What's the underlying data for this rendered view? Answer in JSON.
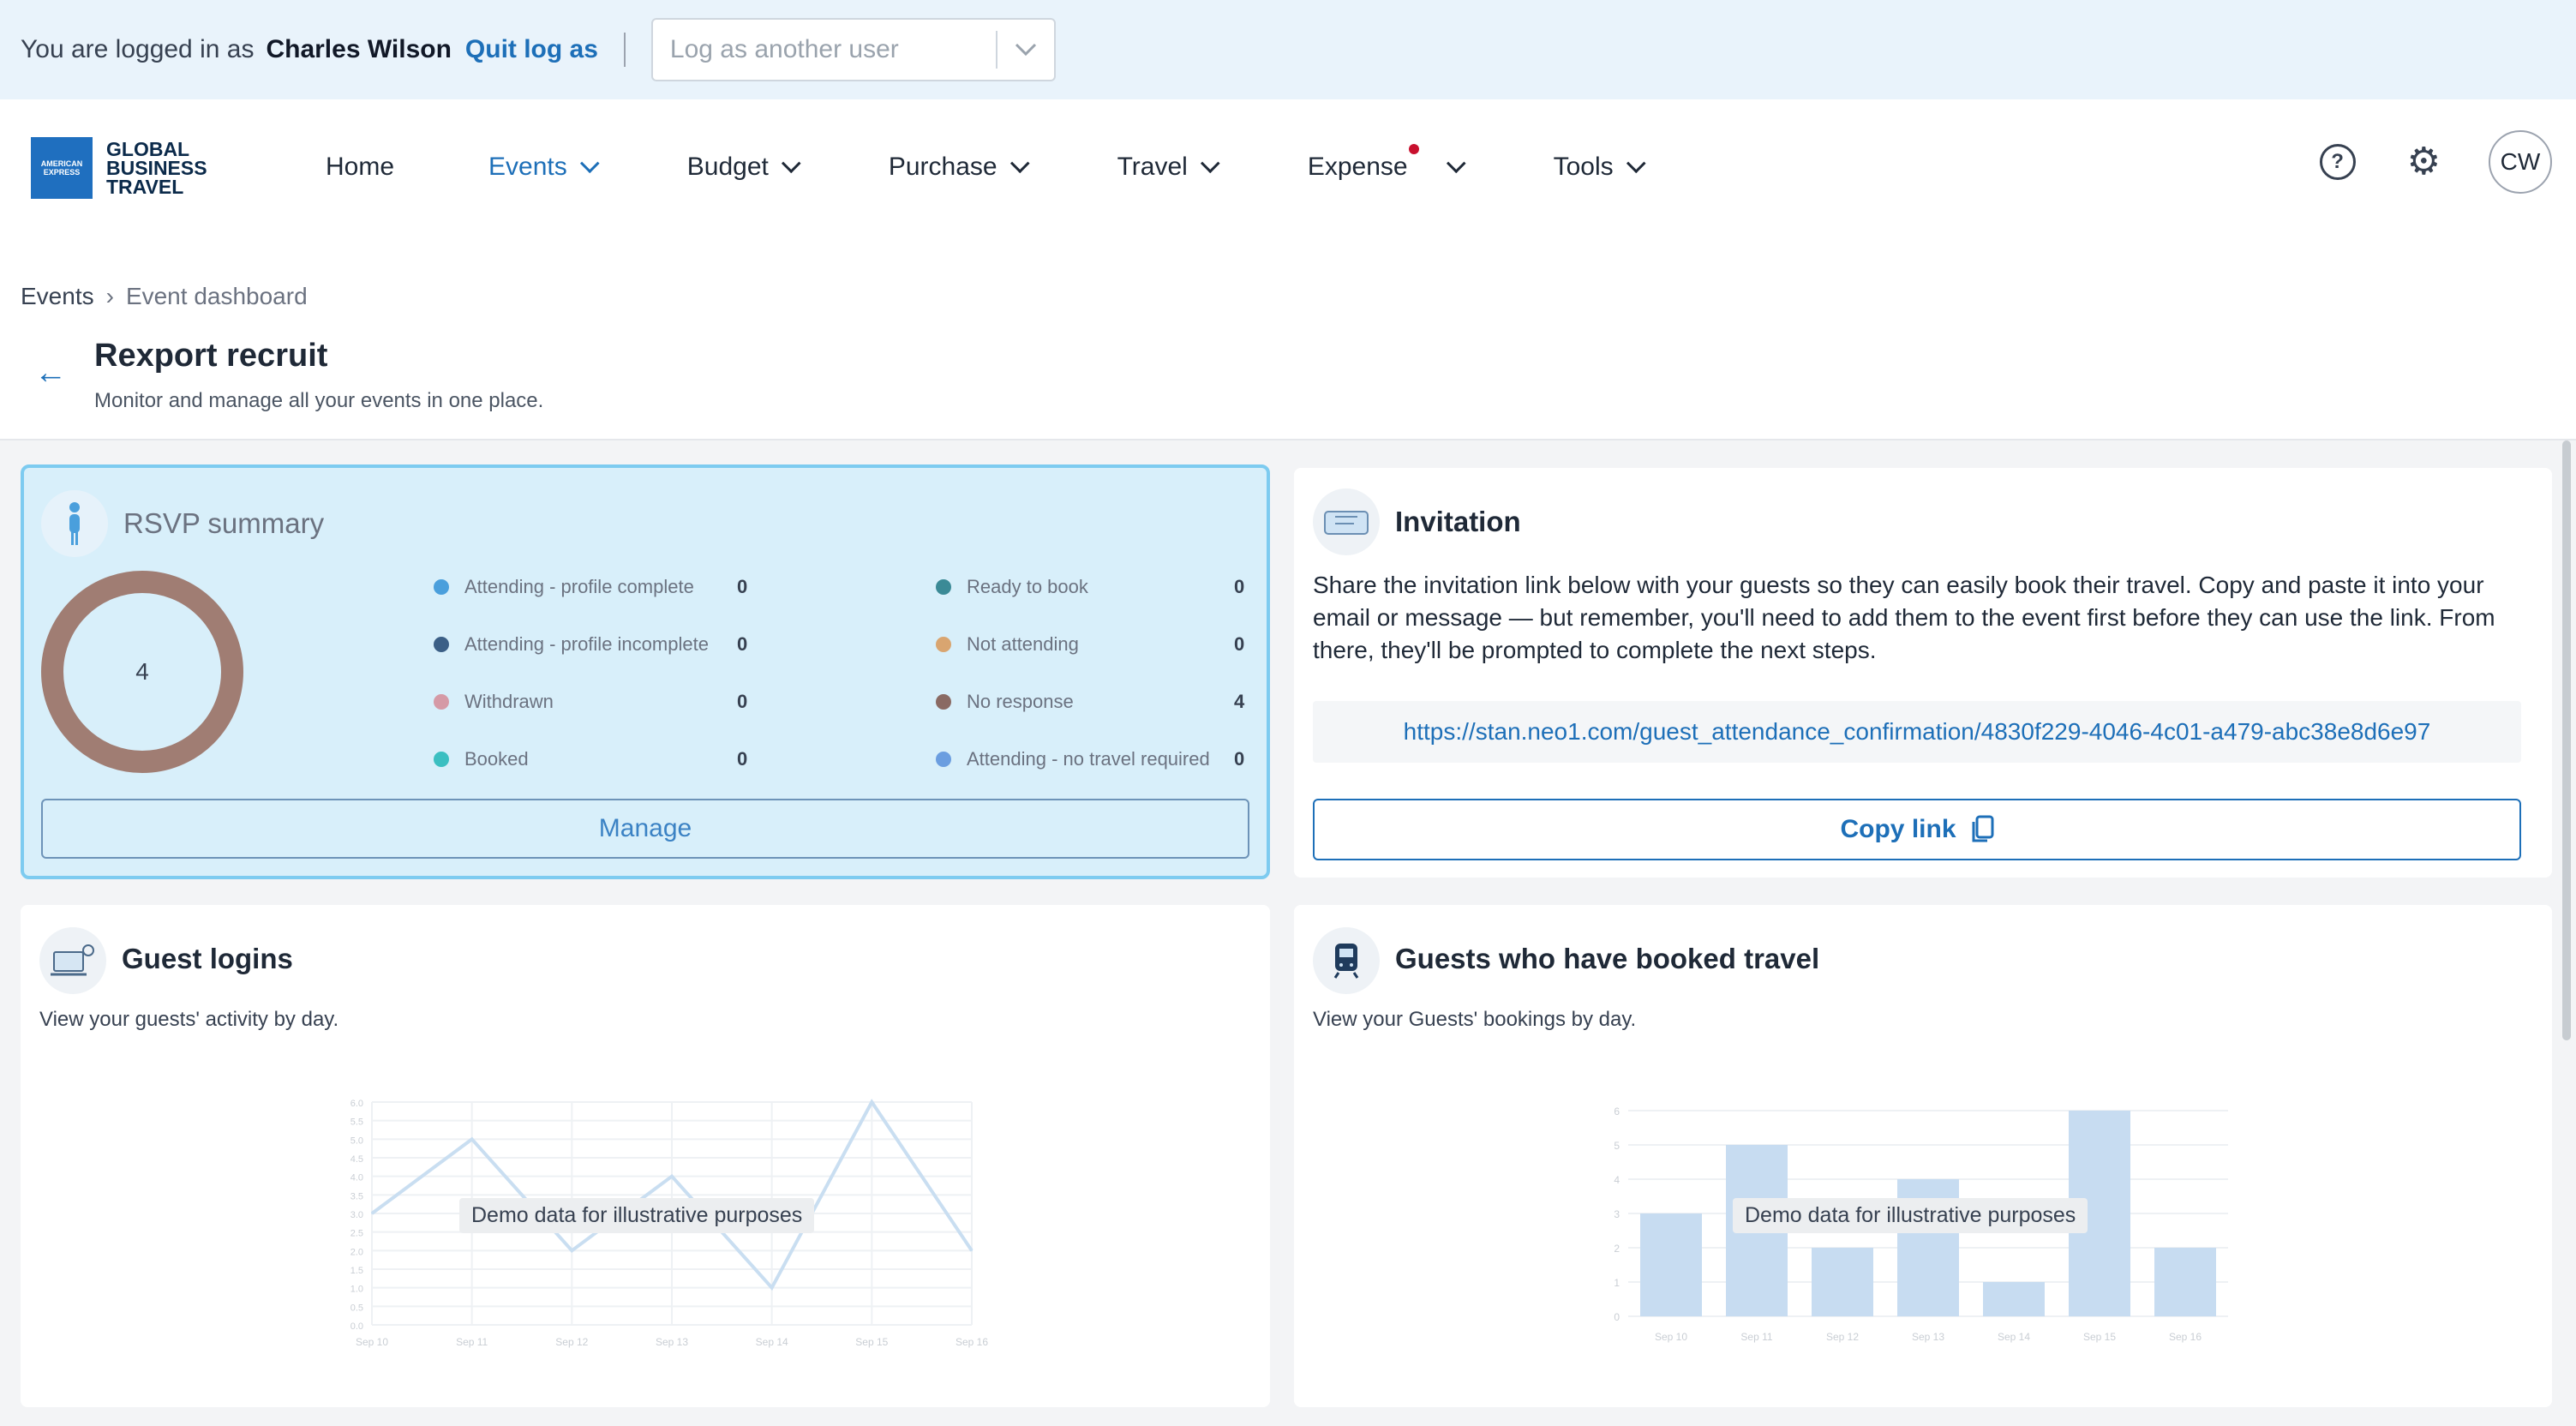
{
  "impersonation": {
    "prefix": "You are logged in as",
    "user": "Charles Wilson",
    "quit_label": "Quit log as",
    "select_placeholder": "Log as another user"
  },
  "nav": {
    "brand_line1": "GLOBAL",
    "brand_line2": "BUSINESS",
    "brand_line3": "TRAVEL",
    "brand_box": "AMERICAN EXPRESS",
    "items": [
      {
        "label": "Home"
      },
      {
        "label": "Events"
      },
      {
        "label": "Budget"
      },
      {
        "label": "Purchase"
      },
      {
        "label": "Travel"
      },
      {
        "label": "Expense"
      },
      {
        "label": "Tools"
      }
    ],
    "avatar": "CW"
  },
  "breadcrumb": {
    "root": "Events",
    "current": "Event dashboard"
  },
  "page": {
    "title": "Rexport recruit",
    "subtitle": "Monitor and manage all your events in one place."
  },
  "rsvp": {
    "title": "RSVP summary",
    "total": "4",
    "manage_label": "Manage",
    "legend": [
      {
        "label": "Attending - profile complete",
        "value": "0",
        "color": "#4a9fdc"
      },
      {
        "label": "Attending - profile incomplete",
        "value": "0",
        "color": "#3b5f86"
      },
      {
        "label": "Withdrawn",
        "value": "0",
        "color": "#d59aa6"
      },
      {
        "label": "Booked",
        "value": "0",
        "color": "#3bbfc1"
      },
      {
        "label": "Ready to book",
        "value": "0",
        "color": "#3b8a96"
      },
      {
        "label": "Not attending",
        "value": "0",
        "color": "#d9a570"
      },
      {
        "label": "No response",
        "value": "4",
        "color": "#8a6a63"
      },
      {
        "label": "Attending - no travel required",
        "value": "0",
        "color": "#6b9ee0"
      }
    ]
  },
  "invitation": {
    "title": "Invitation",
    "text": "Share the invitation link below with your guests so they can easily book their travel. Copy and paste it into your email or message — but remember, you'll need to add them to the event first before they can use the link. From there, they'll be prompted to complete the next steps.",
    "link": "https://stan.neo1.com/guest_attendance_confirmation/4830f229-4046-4c01-a479-abc38e8d6e97",
    "copy_label": "Copy link"
  },
  "guest_logins": {
    "title": "Guest logins",
    "desc": "View your guests' activity by day.",
    "demo_label": "Demo data for illustrative purposes"
  },
  "guests_booked": {
    "title": "Guests who have booked travel",
    "desc": "View your Guests' bookings by day.",
    "demo_label": "Demo data for illustrative purposes"
  },
  "chart_data": [
    {
      "type": "line",
      "title": "",
      "x": [
        "Sep 10",
        "Sep 11",
        "Sep 12",
        "Sep 13",
        "Sep 14",
        "Sep 15",
        "Sep 16"
      ],
      "y": [
        3.0,
        5.0,
        2.0,
        4.0,
        1.0,
        6.0,
        2.0
      ],
      "ylabel": "",
      "ylim": [
        0,
        6
      ]
    },
    {
      "type": "bar",
      "title": "",
      "categories": [
        "Sep 10",
        "Sep 11",
        "Sep 12",
        "Sep 13",
        "Sep 14",
        "Sep 15",
        "Sep 16"
      ],
      "values": [
        3,
        5,
        2,
        4,
        1,
        6,
        2
      ],
      "ylabel": "",
      "ylim": [
        0,
        6
      ]
    }
  ]
}
